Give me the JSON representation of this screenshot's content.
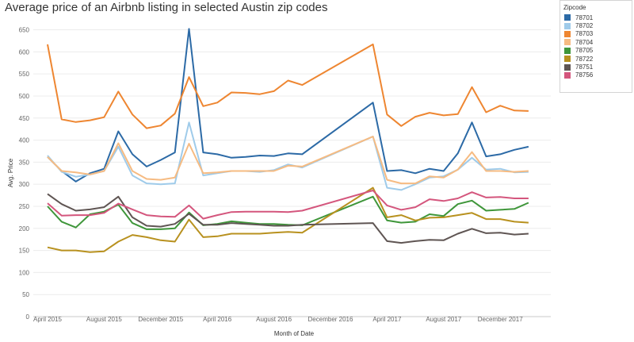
{
  "chart_data": {
    "type": "line",
    "title": "Average price of an Airbnb listing in selected Austin zip codes",
    "xlabel": "Month of Date",
    "ylabel": "Avg. Price",
    "ylim": [
      0,
      660
    ],
    "y_ticks": [
      0,
      50,
      100,
      150,
      200,
      250,
      300,
      350,
      400,
      450,
      500,
      550,
      600,
      650
    ],
    "x_tick_labels": [
      "April 2015",
      "August 2015",
      "December 2015",
      "April 2016",
      "August 2016",
      "December 2016",
      "April 2017",
      "August 2017",
      "December 2017"
    ],
    "x_tick_months": [
      0,
      4,
      8,
      12,
      16,
      20,
      24,
      28,
      32
    ],
    "x_range_months": [
      0,
      35
    ],
    "grid": true,
    "legend_position": "top-right",
    "legend_title": "Zipcode",
    "series": [
      {
        "name": "78701",
        "color": "#2c6aa6",
        "points": [
          [
            0,
            362
          ],
          [
            1,
            330
          ],
          [
            2,
            306
          ],
          [
            3,
            325
          ],
          [
            4,
            335
          ],
          [
            5,
            420
          ],
          [
            6,
            368
          ],
          [
            7,
            340
          ],
          [
            8,
            355
          ],
          [
            9,
            372
          ],
          [
            10,
            652
          ],
          [
            11,
            372
          ],
          [
            12,
            368
          ],
          [
            13,
            360
          ],
          [
            14,
            362
          ],
          [
            15,
            365
          ],
          [
            16,
            364
          ],
          [
            17,
            370
          ],
          [
            18,
            368
          ],
          [
            23,
            485
          ],
          [
            24,
            330
          ],
          [
            25,
            332
          ],
          [
            26,
            325
          ],
          [
            27,
            335
          ],
          [
            28,
            330
          ],
          [
            29,
            370
          ],
          [
            30,
            440
          ],
          [
            31,
            363
          ],
          [
            32,
            368
          ],
          [
            33,
            378
          ],
          [
            34,
            385
          ]
        ]
      },
      {
        "name": "78702",
        "color": "#9fcbea",
        "points": [
          [
            0,
            365
          ],
          [
            1,
            328
          ],
          [
            2,
            317
          ],
          [
            3,
            322
          ],
          [
            4,
            330
          ],
          [
            5,
            385
          ],
          [
            6,
            320
          ],
          [
            7,
            302
          ],
          [
            8,
            300
          ],
          [
            9,
            302
          ],
          [
            10,
            440
          ],
          [
            11,
            320
          ],
          [
            12,
            325
          ],
          [
            13,
            330
          ],
          [
            14,
            330
          ],
          [
            15,
            328
          ],
          [
            16,
            332
          ],
          [
            17,
            345
          ],
          [
            18,
            338
          ],
          [
            23,
            408
          ],
          [
            24,
            292
          ],
          [
            25,
            287
          ],
          [
            26,
            300
          ],
          [
            27,
            315
          ],
          [
            28,
            318
          ],
          [
            29,
            333
          ],
          [
            30,
            360
          ],
          [
            31,
            333
          ],
          [
            32,
            335
          ],
          [
            33,
            327
          ],
          [
            34,
            328
          ]
        ]
      },
      {
        "name": "78703",
        "color": "#ee8631",
        "points": [
          [
            0,
            617
          ],
          [
            1,
            447
          ],
          [
            2,
            441
          ],
          [
            3,
            445
          ],
          [
            4,
            452
          ],
          [
            5,
            510
          ],
          [
            6,
            458
          ],
          [
            7,
            427
          ],
          [
            8,
            433
          ],
          [
            9,
            460
          ],
          [
            10,
            543
          ],
          [
            11,
            477
          ],
          [
            12,
            485
          ],
          [
            13,
            508
          ],
          [
            14,
            507
          ],
          [
            15,
            504
          ],
          [
            16,
            511
          ],
          [
            17,
            535
          ],
          [
            18,
            525
          ],
          [
            23,
            617
          ],
          [
            24,
            458
          ],
          [
            25,
            432
          ],
          [
            26,
            453
          ],
          [
            27,
            462
          ],
          [
            28,
            456
          ],
          [
            29,
            459
          ],
          [
            30,
            520
          ],
          [
            31,
            463
          ],
          [
            32,
            478
          ],
          [
            33,
            467
          ],
          [
            34,
            466
          ]
        ]
      },
      {
        "name": "78704",
        "color": "#f6bb82",
        "points": [
          [
            0,
            362
          ],
          [
            1,
            330
          ],
          [
            2,
            327
          ],
          [
            3,
            322
          ],
          [
            4,
            330
          ],
          [
            5,
            393
          ],
          [
            6,
            330
          ],
          [
            7,
            312
          ],
          [
            8,
            310
          ],
          [
            9,
            315
          ],
          [
            10,
            392
          ],
          [
            11,
            325
          ],
          [
            12,
            327
          ],
          [
            13,
            330
          ],
          [
            14,
            330
          ],
          [
            15,
            330
          ],
          [
            16,
            330
          ],
          [
            17,
            342
          ],
          [
            18,
            340
          ],
          [
            23,
            408
          ],
          [
            24,
            310
          ],
          [
            25,
            302
          ],
          [
            26,
            302
          ],
          [
            27,
            318
          ],
          [
            28,
            315
          ],
          [
            29,
            333
          ],
          [
            30,
            373
          ],
          [
            31,
            330
          ],
          [
            32,
            330
          ],
          [
            33,
            328
          ],
          [
            34,
            330
          ]
        ]
      },
      {
        "name": "78705",
        "color": "#3f963a",
        "points": [
          [
            0,
            250
          ],
          [
            1,
            215
          ],
          [
            2,
            202
          ],
          [
            3,
            232
          ],
          [
            4,
            238
          ],
          [
            5,
            254
          ],
          [
            6,
            212
          ],
          [
            7,
            198
          ],
          [
            8,
            198
          ],
          [
            9,
            200
          ],
          [
            10,
            236
          ],
          [
            11,
            207
          ],
          [
            12,
            210
          ],
          [
            13,
            216
          ],
          [
            14,
            213
          ],
          [
            15,
            210
          ],
          [
            16,
            210
          ],
          [
            17,
            208
          ],
          [
            18,
            207
          ],
          [
            23,
            272
          ],
          [
            24,
            218
          ],
          [
            25,
            213
          ],
          [
            26,
            215
          ],
          [
            27,
            232
          ],
          [
            28,
            228
          ],
          [
            29,
            255
          ],
          [
            30,
            263
          ],
          [
            31,
            240
          ],
          [
            32,
            242
          ],
          [
            33,
            244
          ],
          [
            34,
            258
          ]
        ]
      },
      {
        "name": "78722",
        "color": "#b8911f",
        "points": [
          [
            0,
            157
          ],
          [
            1,
            150
          ],
          [
            2,
            150
          ],
          [
            3,
            146
          ],
          [
            4,
            148
          ],
          [
            5,
            170
          ],
          [
            6,
            185
          ],
          [
            7,
            180
          ],
          [
            8,
            173
          ],
          [
            9,
            170
          ],
          [
            10,
            220
          ],
          [
            11,
            180
          ],
          [
            12,
            182
          ],
          [
            13,
            188
          ],
          [
            14,
            188
          ],
          [
            15,
            188
          ],
          [
            16,
            190
          ],
          [
            17,
            192
          ],
          [
            18,
            190
          ],
          [
            23,
            292
          ],
          [
            24,
            225
          ],
          [
            25,
            230
          ],
          [
            26,
            218
          ],
          [
            27,
            224
          ],
          [
            28,
            225
          ],
          [
            29,
            230
          ],
          [
            30,
            235
          ],
          [
            31,
            221
          ],
          [
            32,
            221
          ],
          [
            33,
            215
          ],
          [
            34,
            213
          ]
        ]
      },
      {
        "name": "78751",
        "color": "#5f5553",
        "points": [
          [
            0,
            278
          ],
          [
            1,
            255
          ],
          [
            2,
            240
          ],
          [
            3,
            243
          ],
          [
            4,
            248
          ],
          [
            5,
            272
          ],
          [
            6,
            225
          ],
          [
            7,
            206
          ],
          [
            8,
            204
          ],
          [
            9,
            210
          ],
          [
            10,
            233
          ],
          [
            11,
            208
          ],
          [
            12,
            208
          ],
          [
            13,
            212
          ],
          [
            14,
            210
          ],
          [
            15,
            208
          ],
          [
            16,
            206
          ],
          [
            17,
            206
          ],
          [
            18,
            208
          ],
          [
            23,
            212
          ],
          [
            24,
            171
          ],
          [
            25,
            167
          ],
          [
            26,
            171
          ],
          [
            27,
            174
          ],
          [
            28,
            173
          ],
          [
            29,
            188
          ],
          [
            30,
            199
          ],
          [
            31,
            189
          ],
          [
            32,
            190
          ],
          [
            33,
            186
          ],
          [
            34,
            188
          ]
        ]
      },
      {
        "name": "78756",
        "color": "#d4567d",
        "points": [
          [
            0,
            257
          ],
          [
            1,
            229
          ],
          [
            2,
            230
          ],
          [
            3,
            230
          ],
          [
            4,
            235
          ],
          [
            5,
            256
          ],
          [
            6,
            243
          ],
          [
            7,
            230
          ],
          [
            8,
            227
          ],
          [
            9,
            226
          ],
          [
            10,
            252
          ],
          [
            11,
            222
          ],
          [
            12,
            230
          ],
          [
            13,
            237
          ],
          [
            14,
            238
          ],
          [
            15,
            238
          ],
          [
            16,
            238
          ],
          [
            17,
            237
          ],
          [
            18,
            240
          ],
          [
            23,
            286
          ],
          [
            24,
            252
          ],
          [
            25,
            242
          ],
          [
            26,
            248
          ],
          [
            27,
            266
          ],
          [
            28,
            262
          ],
          [
            29,
            268
          ],
          [
            30,
            282
          ],
          [
            31,
            270
          ],
          [
            32,
            271
          ],
          [
            33,
            268
          ],
          [
            34,
            268
          ]
        ]
      }
    ]
  }
}
